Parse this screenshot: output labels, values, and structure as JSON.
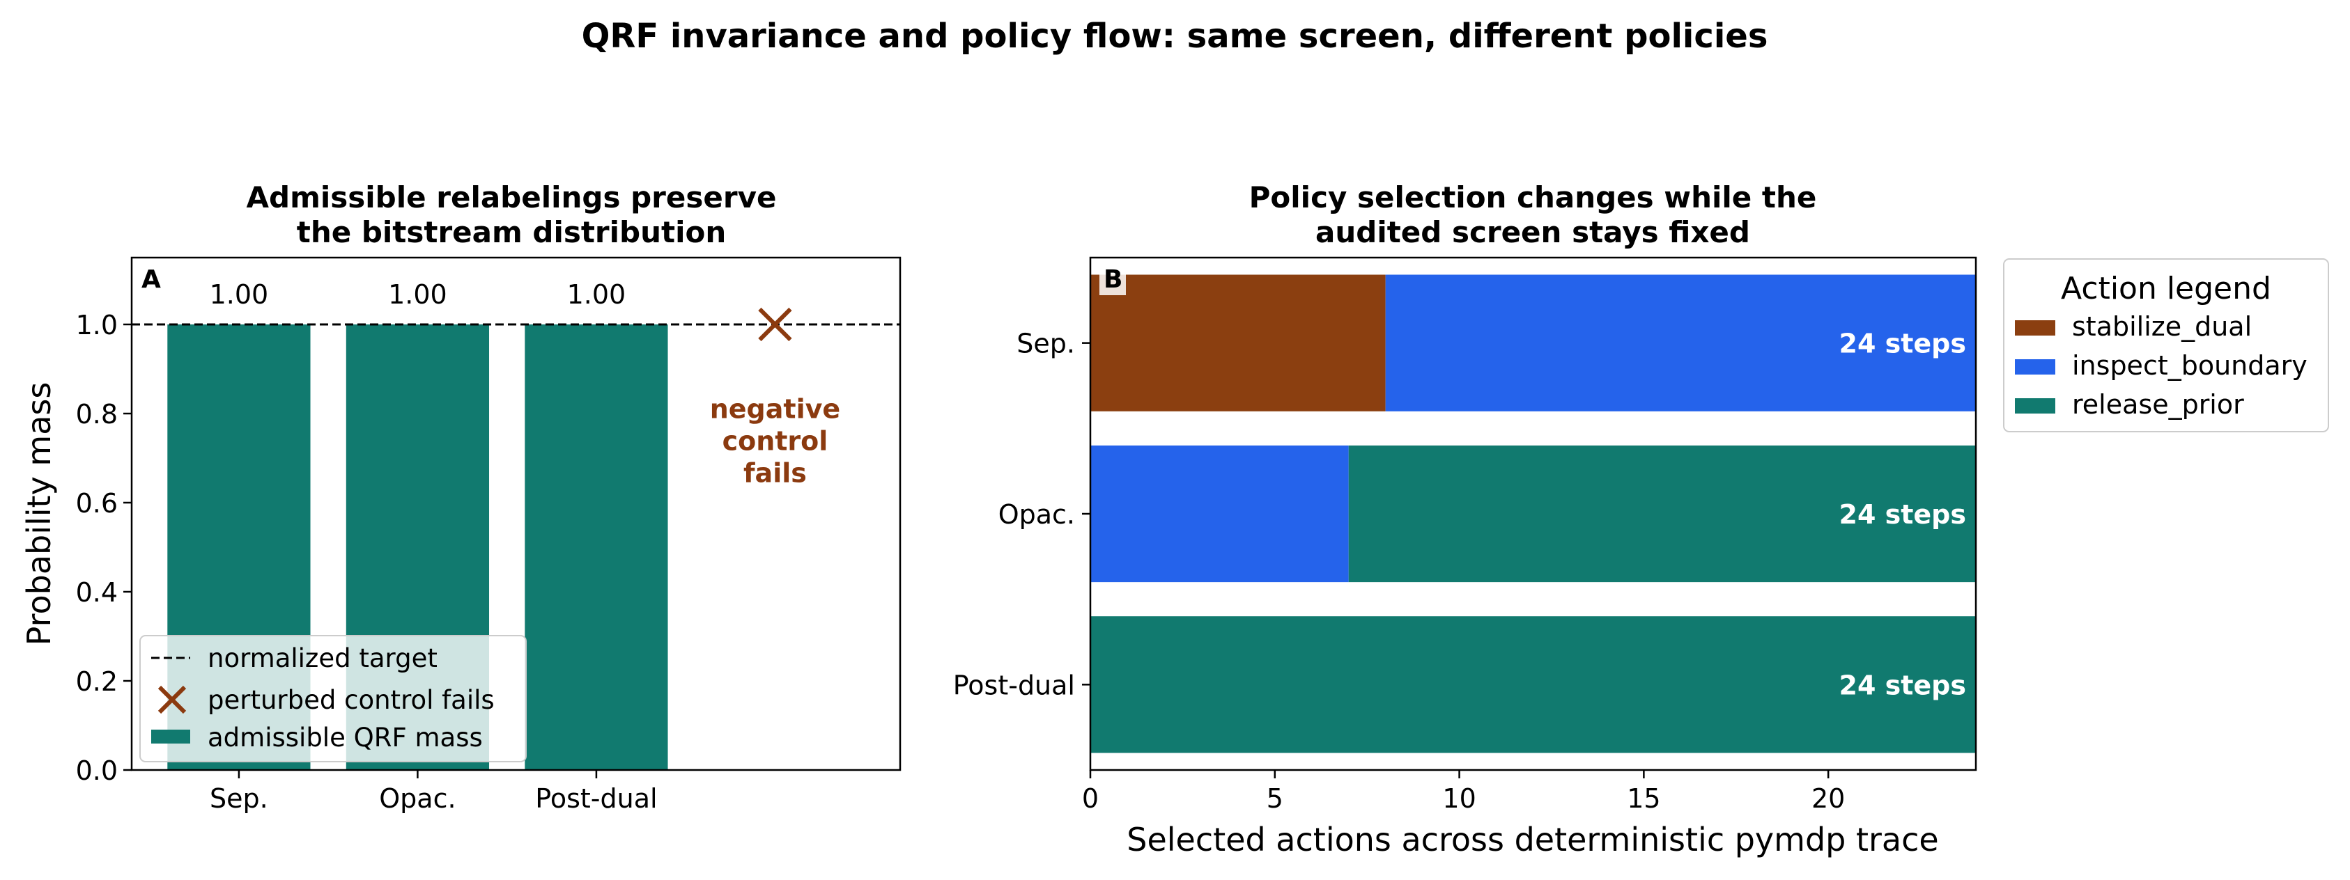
{
  "figure": {
    "suptitle": "QRF invariance and policy flow: same screen, different policies"
  },
  "chart_data": [
    {
      "type": "bar",
      "panel_label": "A",
      "title_lines": [
        "Admissible relabelings preserve",
        "the bitstream distribution"
      ],
      "ylabel": "Probability mass",
      "xlabel": "",
      "categories": [
        "Sep.",
        "Opac.",
        "Post-dual"
      ],
      "values": [
        1.0,
        1.0,
        1.0
      ],
      "value_labels": [
        "1.00",
        "1.00",
        "1.00"
      ],
      "ylim": [
        0,
        1.15
      ],
      "yticks": [
        "0.0",
        "0.2",
        "0.4",
        "0.6",
        "0.8",
        "1.0"
      ],
      "reference_line": 1.0,
      "negative_control": {
        "value": 1.0,
        "annotation_lines": [
          "negative",
          "control",
          "fails"
        ]
      },
      "legend": {
        "position": "lower-left",
        "entries": [
          "normalized target",
          "perturbed control fails",
          "admissible QRF mass"
        ]
      },
      "colors": {
        "bar": "#117a6f",
        "control": "#8b3a0f",
        "annotation": "#8b3a0f"
      }
    },
    {
      "type": "bar",
      "orientation": "horizontal-stacked",
      "panel_label": "B",
      "title_lines": [
        "Policy selection changes while the",
        "audited screen stays fixed"
      ],
      "xlabel": "Selected actions across deterministic pymdp trace",
      "ylabel": "",
      "categories": [
        "Sep.",
        "Opac.",
        "Post-dual"
      ],
      "xlim": [
        0,
        24
      ],
      "xticks": [
        "0",
        "5",
        "10",
        "15",
        "20"
      ],
      "series": [
        {
          "name": "stabilize_dual",
          "color": "#8b3f10",
          "values": [
            8,
            0,
            0
          ]
        },
        {
          "name": "inspect_boundary",
          "color": "#2563eb",
          "values": [
            16,
            7,
            0
          ]
        },
        {
          "name": "release_prior",
          "color": "#117a6f",
          "values": [
            0,
            17,
            24
          ]
        }
      ],
      "bar_labels": [
        "24 steps",
        "24 steps",
        "24 steps"
      ],
      "legend": {
        "title": "Action legend",
        "position": "outside-right-top"
      }
    }
  ]
}
